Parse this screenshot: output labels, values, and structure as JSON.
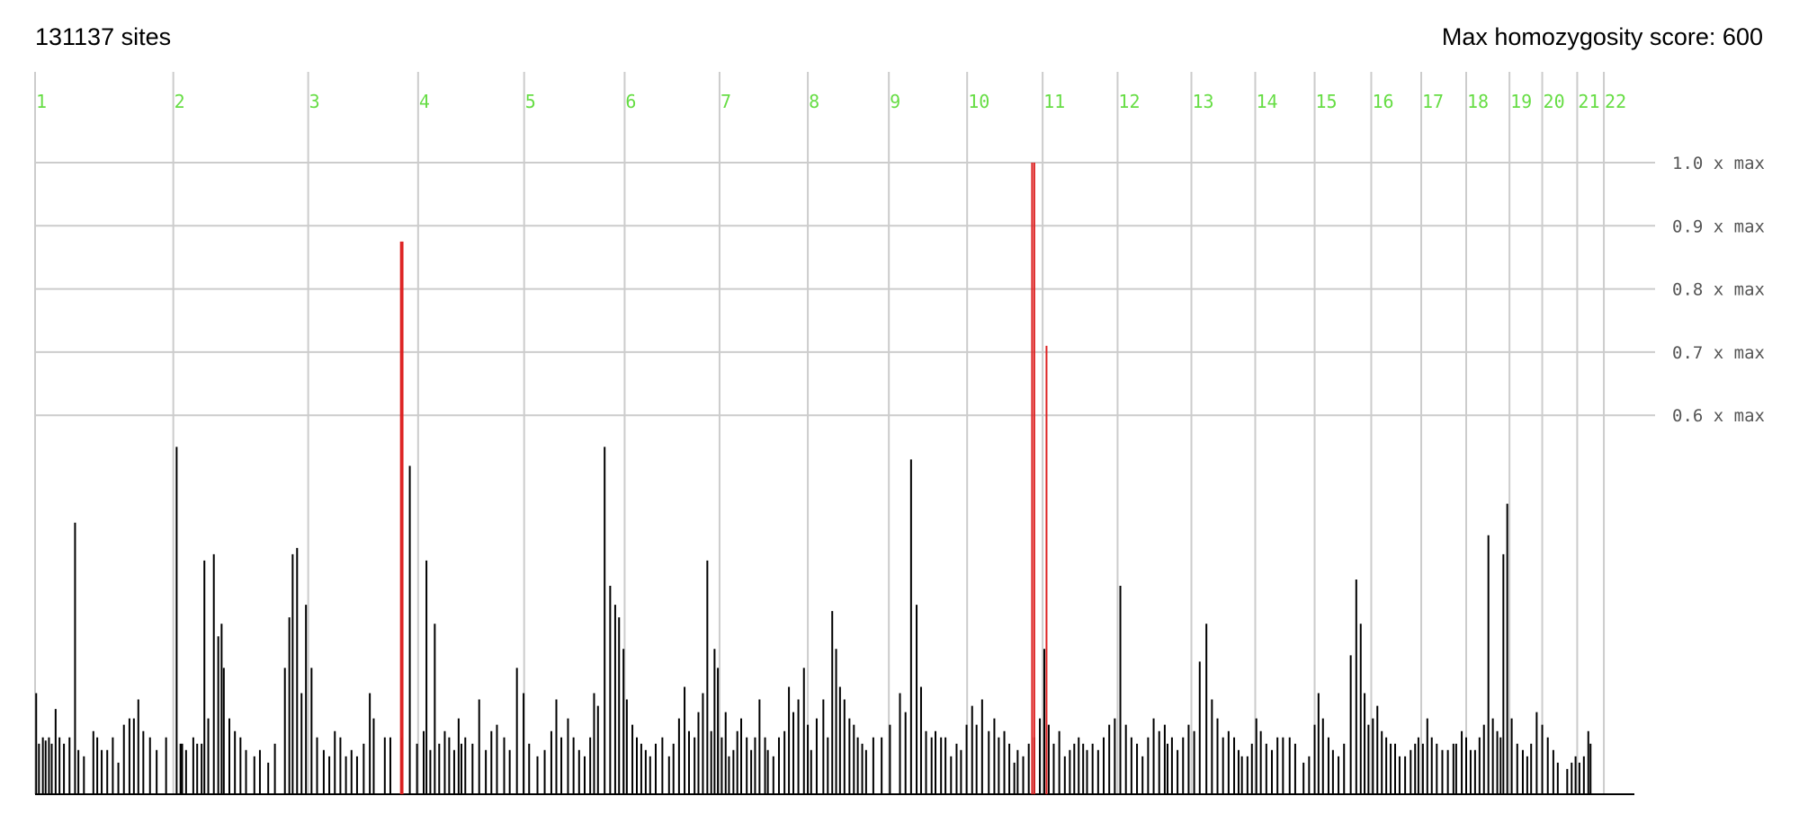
{
  "header": {
    "sites_label": "131137 sites",
    "max_label": "Max homozygosity score: 600"
  },
  "chart_data": {
    "type": "bar",
    "ylabel": "",
    "xlabel": "",
    "colors": {
      "normal": "#000000",
      "highlight": "#dd2222",
      "grid": "#cccccc",
      "chromosome_label": "#66dd44",
      "axis_label": "#555555"
    },
    "max_score": 600,
    "y_ticks": [
      {
        "value": 1.0,
        "label": "1.0 x max"
      },
      {
        "value": 0.9,
        "label": "0.9 x max"
      },
      {
        "value": 0.8,
        "label": "0.8 x max"
      },
      {
        "value": 0.7,
        "label": "0.7 x max"
      },
      {
        "value": 0.6,
        "label": "0.6 x max"
      }
    ],
    "genome_length_mb": 2881,
    "chromosomes": [
      {
        "label": "1",
        "length": 249
      },
      {
        "label": "2",
        "length": 243
      },
      {
        "label": "3",
        "length": 198
      },
      {
        "label": "4",
        "length": 191
      },
      {
        "label": "5",
        "length": 181
      },
      {
        "label": "6",
        "length": 171
      },
      {
        "label": "7",
        "length": 159
      },
      {
        "label": "8",
        "length": 146
      },
      {
        "label": "9",
        "length": 141
      },
      {
        "label": "10",
        "length": 136
      },
      {
        "label": "11",
        "length": 135
      },
      {
        "label": "12",
        "length": 133
      },
      {
        "label": "13",
        "length": 115
      },
      {
        "label": "14",
        "length": 107
      },
      {
        "label": "15",
        "length": 102
      },
      {
        "label": "16",
        "length": 90
      },
      {
        "label": "17",
        "length": 81
      },
      {
        "label": "18",
        "length": 78
      },
      {
        "label": "19",
        "length": 59
      },
      {
        "label": "20",
        "length": 63
      },
      {
        "label": "21",
        "length": 48
      },
      {
        "label": "22",
        "length": 51
      }
    ],
    "peaks": [
      {
        "pos": 2,
        "v": 0.16
      },
      {
        "pos": 7,
        "v": 0.08
      },
      {
        "pos": 14,
        "v": 0.09
      },
      {
        "pos": 19,
        "v": 0.085
      },
      {
        "pos": 25,
        "v": 0.09
      },
      {
        "pos": 30,
        "v": 0.08
      },
      {
        "pos": 37,
        "v": 0.135
      },
      {
        "pos": 44,
        "v": 0.09
      },
      {
        "pos": 52,
        "v": 0.08
      },
      {
        "pos": 62,
        "v": 0.09
      },
      {
        "pos": 72,
        "v": 0.43
      },
      {
        "pos": 78,
        "v": 0.07
      },
      {
        "pos": 88,
        "v": 0.06
      },
      {
        "pos": 105,
        "v": 0.1
      },
      {
        "pos": 112,
        "v": 0.09
      },
      {
        "pos": 120,
        "v": 0.07
      },
      {
        "pos": 130,
        "v": 0.07
      },
      {
        "pos": 140,
        "v": 0.09
      },
      {
        "pos": 150,
        "v": 0.05
      },
      {
        "pos": 160,
        "v": 0.11
      },
      {
        "pos": 170,
        "v": 0.12
      },
      {
        "pos": 178,
        "v": 0.12
      },
      {
        "pos": 186,
        "v": 0.15
      },
      {
        "pos": 195,
        "v": 0.1
      },
      {
        "pos": 207,
        "v": 0.09
      },
      {
        "pos": 219,
        "v": 0.07
      },
      {
        "pos": 236,
        "v": 0.09
      },
      {
        "pos": 255,
        "v": 0.55
      },
      {
        "pos": 262,
        "v": 0.08
      },
      {
        "pos": 265,
        "v": 0.08
      },
      {
        "pos": 272,
        "v": 0.07
      },
      {
        "pos": 285,
        "v": 0.09
      },
      {
        "pos": 292,
        "v": 0.08
      },
      {
        "pos": 300,
        "v": 0.08
      },
      {
        "pos": 305,
        "v": 0.37
      },
      {
        "pos": 312,
        "v": 0.12
      },
      {
        "pos": 322,
        "v": 0.38
      },
      {
        "pos": 330,
        "v": 0.25
      },
      {
        "pos": 336,
        "v": 0.27
      },
      {
        "pos": 340,
        "v": 0.2
      },
      {
        "pos": 350,
        "v": 0.12
      },
      {
        "pos": 360,
        "v": 0.1
      },
      {
        "pos": 370,
        "v": 0.09
      },
      {
        "pos": 380,
        "v": 0.07
      },
      {
        "pos": 395,
        "v": 0.06
      },
      {
        "pos": 405,
        "v": 0.07
      },
      {
        "pos": 420,
        "v": 0.05
      },
      {
        "pos": 432,
        "v": 0.08
      },
      {
        "pos": 450,
        "v": 0.2
      },
      {
        "pos": 458,
        "v": 0.28
      },
      {
        "pos": 464,
        "v": 0.38
      },
      {
        "pos": 472,
        "v": 0.39
      },
      {
        "pos": 480,
        "v": 0.16
      },
      {
        "pos": 488,
        "v": 0.3
      },
      {
        "pos": 498,
        "v": 0.2
      },
      {
        "pos": 508,
        "v": 0.09
      },
      {
        "pos": 520,
        "v": 0.07
      },
      {
        "pos": 530,
        "v": 0.06
      },
      {
        "pos": 540,
        "v": 0.1
      },
      {
        "pos": 550,
        "v": 0.09
      },
      {
        "pos": 560,
        "v": 0.06
      },
      {
        "pos": 570,
        "v": 0.07
      },
      {
        "pos": 580,
        "v": 0.06
      },
      {
        "pos": 592,
        "v": 0.08
      },
      {
        "pos": 603,
        "v": 0.16
      },
      {
        "pos": 610,
        "v": 0.12
      },
      {
        "pos": 630,
        "v": 0.09
      },
      {
        "pos": 640,
        "v": 0.09
      },
      {
        "pos": 660,
        "v": 0.09
      },
      {
        "pos": 675,
        "v": 0.52
      },
      {
        "pos": 688,
        "v": 0.08
      },
      {
        "pos": 700,
        "v": 0.1
      },
      {
        "pos": 705,
        "v": 0.37
      },
      {
        "pos": 712,
        "v": 0.07
      },
      {
        "pos": 720,
        "v": 0.27
      },
      {
        "pos": 728,
        "v": 0.08
      },
      {
        "pos": 738,
        "v": 0.1
      },
      {
        "pos": 746,
        "v": 0.09
      },
      {
        "pos": 755,
        "v": 0.07
      },
      {
        "pos": 763,
        "v": 0.12
      },
      {
        "pos": 768,
        "v": 0.08
      },
      {
        "pos": 775,
        "v": 0.09
      },
      {
        "pos": 788,
        "v": 0.08
      },
      {
        "pos": 800,
        "v": 0.15
      },
      {
        "pos": 812,
        "v": 0.07
      },
      {
        "pos": 822,
        "v": 0.1
      },
      {
        "pos": 832,
        "v": 0.11
      },
      {
        "pos": 845,
        "v": 0.09
      },
      {
        "pos": 855,
        "v": 0.07
      },
      {
        "pos": 868,
        "v": 0.2
      },
      {
        "pos": 880,
        "v": 0.16
      },
      {
        "pos": 890,
        "v": 0.08
      },
      {
        "pos": 905,
        "v": 0.06
      },
      {
        "pos": 918,
        "v": 0.07
      },
      {
        "pos": 930,
        "v": 0.1
      },
      {
        "pos": 939,
        "v": 0.15
      },
      {
        "pos": 948,
        "v": 0.09
      },
      {
        "pos": 960,
        "v": 0.12
      },
      {
        "pos": 970,
        "v": 0.09
      },
      {
        "pos": 980,
        "v": 0.07
      },
      {
        "pos": 990,
        "v": 0.06
      },
      {
        "pos": 1000,
        "v": 0.09
      },
      {
        "pos": 1007,
        "v": 0.16
      },
      {
        "pos": 1014,
        "v": 0.14
      },
      {
        "pos": 1026,
        "v": 0.55
      },
      {
        "pos": 1036,
        "v": 0.33
      },
      {
        "pos": 1045,
        "v": 0.3
      },
      {
        "pos": 1052,
        "v": 0.28
      },
      {
        "pos": 1060,
        "v": 0.23
      },
      {
        "pos": 1066,
        "v": 0.15
      },
      {
        "pos": 1076,
        "v": 0.11
      },
      {
        "pos": 1084,
        "v": 0.09
      },
      {
        "pos": 1092,
        "v": 0.08
      },
      {
        "pos": 1100,
        "v": 0.07
      },
      {
        "pos": 1108,
        "v": 0.06
      },
      {
        "pos": 1118,
        "v": 0.08
      },
      {
        "pos": 1130,
        "v": 0.09
      },
      {
        "pos": 1142,
        "v": 0.06
      },
      {
        "pos": 1150,
        "v": 0.08
      },
      {
        "pos": 1160,
        "v": 0.12
      },
      {
        "pos": 1170,
        "v": 0.17
      },
      {
        "pos": 1178,
        "v": 0.1
      },
      {
        "pos": 1188,
        "v": 0.09
      },
      {
        "pos": 1195,
        "v": 0.13
      },
      {
        "pos": 1203,
        "v": 0.16
      },
      {
        "pos": 1211,
        "v": 0.37
      },
      {
        "pos": 1218,
        "v": 0.1
      },
      {
        "pos": 1224,
        "v": 0.23
      },
      {
        "pos": 1230,
        "v": 0.2
      },
      {
        "pos": 1237,
        "v": 0.09
      },
      {
        "pos": 1244,
        "v": 0.13
      },
      {
        "pos": 1250,
        "v": 0.06
      },
      {
        "pos": 1258,
        "v": 0.07
      },
      {
        "pos": 1265,
        "v": 0.1
      },
      {
        "pos": 1272,
        "v": 0.12
      },
      {
        "pos": 1282,
        "v": 0.09
      },
      {
        "pos": 1290,
        "v": 0.07
      },
      {
        "pos": 1297,
        "v": 0.09
      },
      {
        "pos": 1305,
        "v": 0.15
      },
      {
        "pos": 1315,
        "v": 0.09
      },
      {
        "pos": 1320,
        "v": 0.07
      },
      {
        "pos": 1330,
        "v": 0.06
      },
      {
        "pos": 1340,
        "v": 0.09
      },
      {
        "pos": 1350,
        "v": 0.1
      },
      {
        "pos": 1358,
        "v": 0.17
      },
      {
        "pos": 1366,
        "v": 0.13
      },
      {
        "pos": 1375,
        "v": 0.15
      },
      {
        "pos": 1385,
        "v": 0.2
      },
      {
        "pos": 1392,
        "v": 0.11
      },
      {
        "pos": 1398,
        "v": 0.07
      },
      {
        "pos": 1408,
        "v": 0.12
      },
      {
        "pos": 1420,
        "v": 0.15
      },
      {
        "pos": 1428,
        "v": 0.09
      },
      {
        "pos": 1436,
        "v": 0.29
      },
      {
        "pos": 1443,
        "v": 0.23
      },
      {
        "pos": 1450,
        "v": 0.17
      },
      {
        "pos": 1458,
        "v": 0.15
      },
      {
        "pos": 1467,
        "v": 0.12
      },
      {
        "pos": 1475,
        "v": 0.11
      },
      {
        "pos": 1482,
        "v": 0.09
      },
      {
        "pos": 1490,
        "v": 0.08
      },
      {
        "pos": 1497,
        "v": 0.07
      },
      {
        "pos": 1510,
        "v": 0.09
      },
      {
        "pos": 1525,
        "v": 0.09
      },
      {
        "pos": 1540,
        "v": 0.11
      },
      {
        "pos": 1558,
        "v": 0.16
      },
      {
        "pos": 1568,
        "v": 0.13
      },
      {
        "pos": 1578,
        "v": 0.53
      },
      {
        "pos": 1588,
        "v": 0.3
      },
      {
        "pos": 1596,
        "v": 0.17
      },
      {
        "pos": 1605,
        "v": 0.1
      },
      {
        "pos": 1615,
        "v": 0.09
      },
      {
        "pos": 1622,
        "v": 0.1
      },
      {
        "pos": 1632,
        "v": 0.09
      },
      {
        "pos": 1640,
        "v": 0.09
      },
      {
        "pos": 1650,
        "v": 0.06
      },
      {
        "pos": 1660,
        "v": 0.08
      },
      {
        "pos": 1668,
        "v": 0.07
      },
      {
        "pos": 1678,
        "v": 0.11
      },
      {
        "pos": 1688,
        "v": 0.14
      },
      {
        "pos": 1696,
        "v": 0.11
      },
      {
        "pos": 1706,
        "v": 0.15
      },
      {
        "pos": 1718,
        "v": 0.1
      },
      {
        "pos": 1728,
        "v": 0.12
      },
      {
        "pos": 1736,
        "v": 0.09
      },
      {
        "pos": 1746,
        "v": 0.1
      },
      {
        "pos": 1755,
        "v": 0.08
      },
      {
        "pos": 1764,
        "v": 0.05
      },
      {
        "pos": 1770,
        "v": 0.07
      },
      {
        "pos": 1780,
        "v": 0.06
      },
      {
        "pos": 1790,
        "v": 0.08
      },
      {
        "pos": 1800,
        "v": 0.09
      },
      {
        "pos": 1810,
        "v": 0.12
      },
      {
        "pos": 1818,
        "v": 0.23
      },
      {
        "pos": 1826,
        "v": 0.11
      },
      {
        "pos": 1835,
        "v": 0.08
      },
      {
        "pos": 1845,
        "v": 0.1
      },
      {
        "pos": 1855,
        "v": 0.06
      },
      {
        "pos": 1864,
        "v": 0.07
      },
      {
        "pos": 1872,
        "v": 0.08
      },
      {
        "pos": 1880,
        "v": 0.09
      },
      {
        "pos": 1888,
        "v": 0.08
      },
      {
        "pos": 1895,
        "v": 0.07
      },
      {
        "pos": 1905,
        "v": 0.08
      },
      {
        "pos": 1915,
        "v": 0.07
      },
      {
        "pos": 1925,
        "v": 0.09
      },
      {
        "pos": 1935,
        "v": 0.11
      },
      {
        "pos": 1945,
        "v": 0.12
      },
      {
        "pos": 1955,
        "v": 0.33
      },
      {
        "pos": 1965,
        "v": 0.11
      },
      {
        "pos": 1975,
        "v": 0.09
      },
      {
        "pos": 1985,
        "v": 0.08
      },
      {
        "pos": 1995,
        "v": 0.06
      },
      {
        "pos": 2005,
        "v": 0.09
      },
      {
        "pos": 2015,
        "v": 0.12
      },
      {
        "pos": 2025,
        "v": 0.1
      },
      {
        "pos": 2035,
        "v": 0.11
      },
      {
        "pos": 2040,
        "v": 0.08
      },
      {
        "pos": 2048,
        "v": 0.09
      },
      {
        "pos": 2058,
        "v": 0.07
      },
      {
        "pos": 2068,
        "v": 0.09
      },
      {
        "pos": 2078,
        "v": 0.11
      },
      {
        "pos": 2088,
        "v": 0.1
      },
      {
        "pos": 2098,
        "v": 0.21
      },
      {
        "pos": 2110,
        "v": 0.27
      },
      {
        "pos": 2120,
        "v": 0.15
      },
      {
        "pos": 2130,
        "v": 0.12
      },
      {
        "pos": 2140,
        "v": 0.09
      },
      {
        "pos": 2150,
        "v": 0.1
      },
      {
        "pos": 2160,
        "v": 0.09
      },
      {
        "pos": 2168,
        "v": 0.07
      },
      {
        "pos": 2174,
        "v": 0.06
      },
      {
        "pos": 2184,
        "v": 0.06
      },
      {
        "pos": 2192,
        "v": 0.08
      },
      {
        "pos": 2200,
        "v": 0.12
      },
      {
        "pos": 2208,
        "v": 0.1
      },
      {
        "pos": 2218,
        "v": 0.08
      },
      {
        "pos": 2228,
        "v": 0.07
      },
      {
        "pos": 2238,
        "v": 0.09
      },
      {
        "pos": 2248,
        "v": 0.09
      },
      {
        "pos": 2260,
        "v": 0.09
      },
      {
        "pos": 2270,
        "v": 0.08
      },
      {
        "pos": 2285,
        "v": 0.05
      },
      {
        "pos": 2295,
        "v": 0.06
      },
      {
        "pos": 2305,
        "v": 0.11
      },
      {
        "pos": 2312,
        "v": 0.16
      },
      {
        "pos": 2320,
        "v": 0.12
      },
      {
        "pos": 2330,
        "v": 0.09
      },
      {
        "pos": 2338,
        "v": 0.07
      },
      {
        "pos": 2348,
        "v": 0.06
      },
      {
        "pos": 2358,
        "v": 0.08
      },
      {
        "pos": 2370,
        "v": 0.22
      },
      {
        "pos": 2380,
        "v": 0.34
      },
      {
        "pos": 2388,
        "v": 0.27
      },
      {
        "pos": 2395,
        "v": 0.16
      },
      {
        "pos": 2402,
        "v": 0.11
      },
      {
        "pos": 2410,
        "v": 0.12
      },
      {
        "pos": 2418,
        "v": 0.14
      },
      {
        "pos": 2426,
        "v": 0.1
      },
      {
        "pos": 2434,
        "v": 0.09
      },
      {
        "pos": 2442,
        "v": 0.08
      },
      {
        "pos": 2450,
        "v": 0.08
      },
      {
        "pos": 2458,
        "v": 0.06
      },
      {
        "pos": 2468,
        "v": 0.06
      },
      {
        "pos": 2478,
        "v": 0.07
      },
      {
        "pos": 2486,
        "v": 0.08
      },
      {
        "pos": 2492,
        "v": 0.09
      },
      {
        "pos": 2500,
        "v": 0.08
      },
      {
        "pos": 2508,
        "v": 0.12
      },
      {
        "pos": 2516,
        "v": 0.09
      },
      {
        "pos": 2525,
        "v": 0.08
      },
      {
        "pos": 2535,
        "v": 0.07
      },
      {
        "pos": 2545,
        "v": 0.07
      },
      {
        "pos": 2555,
        "v": 0.08
      },
      {
        "pos": 2560,
        "v": 0.08
      },
      {
        "pos": 2570,
        "v": 0.1
      },
      {
        "pos": 2578,
        "v": 0.09
      },
      {
        "pos": 2586,
        "v": 0.07
      },
      {
        "pos": 2594,
        "v": 0.07
      },
      {
        "pos": 2602,
        "v": 0.09
      },
      {
        "pos": 2610,
        "v": 0.11
      },
      {
        "pos": 2618,
        "v": 0.41
      },
      {
        "pos": 2626,
        "v": 0.12
      },
      {
        "pos": 2634,
        "v": 0.1
      },
      {
        "pos": 2640,
        "v": 0.09
      },
      {
        "pos": 2645,
        "v": 0.38
      },
      {
        "pos": 2652,
        "v": 0.46
      },
      {
        "pos": 2660,
        "v": 0.12
      },
      {
        "pos": 2670,
        "v": 0.08
      },
      {
        "pos": 2680,
        "v": 0.07
      },
      {
        "pos": 2688,
        "v": 0.06
      },
      {
        "pos": 2695,
        "v": 0.08
      },
      {
        "pos": 2705,
        "v": 0.13
      },
      {
        "pos": 2715,
        "v": 0.11
      },
      {
        "pos": 2725,
        "v": 0.09
      },
      {
        "pos": 2735,
        "v": 0.07
      },
      {
        "pos": 2743,
        "v": 0.05
      },
      {
        "pos": 2760,
        "v": 0.04
      },
      {
        "pos": 2768,
        "v": 0.05
      },
      {
        "pos": 2775,
        "v": 0.06
      },
      {
        "pos": 2782,
        "v": 0.05
      },
      {
        "pos": 2790,
        "v": 0.06
      },
      {
        "pos": 2798,
        "v": 0.1
      },
      {
        "pos": 2802,
        "v": 0.08
      }
    ],
    "highlighted_peaks": [
      {
        "pos": 659,
        "v": 0.875
      },
      {
        "pos": 662,
        "v": 0.875
      },
      {
        "pos": 1796,
        "v": 1.0
      },
      {
        "pos": 1800,
        "v": 1.0
      },
      {
        "pos": 1822,
        "v": 0.71
      }
    ]
  }
}
